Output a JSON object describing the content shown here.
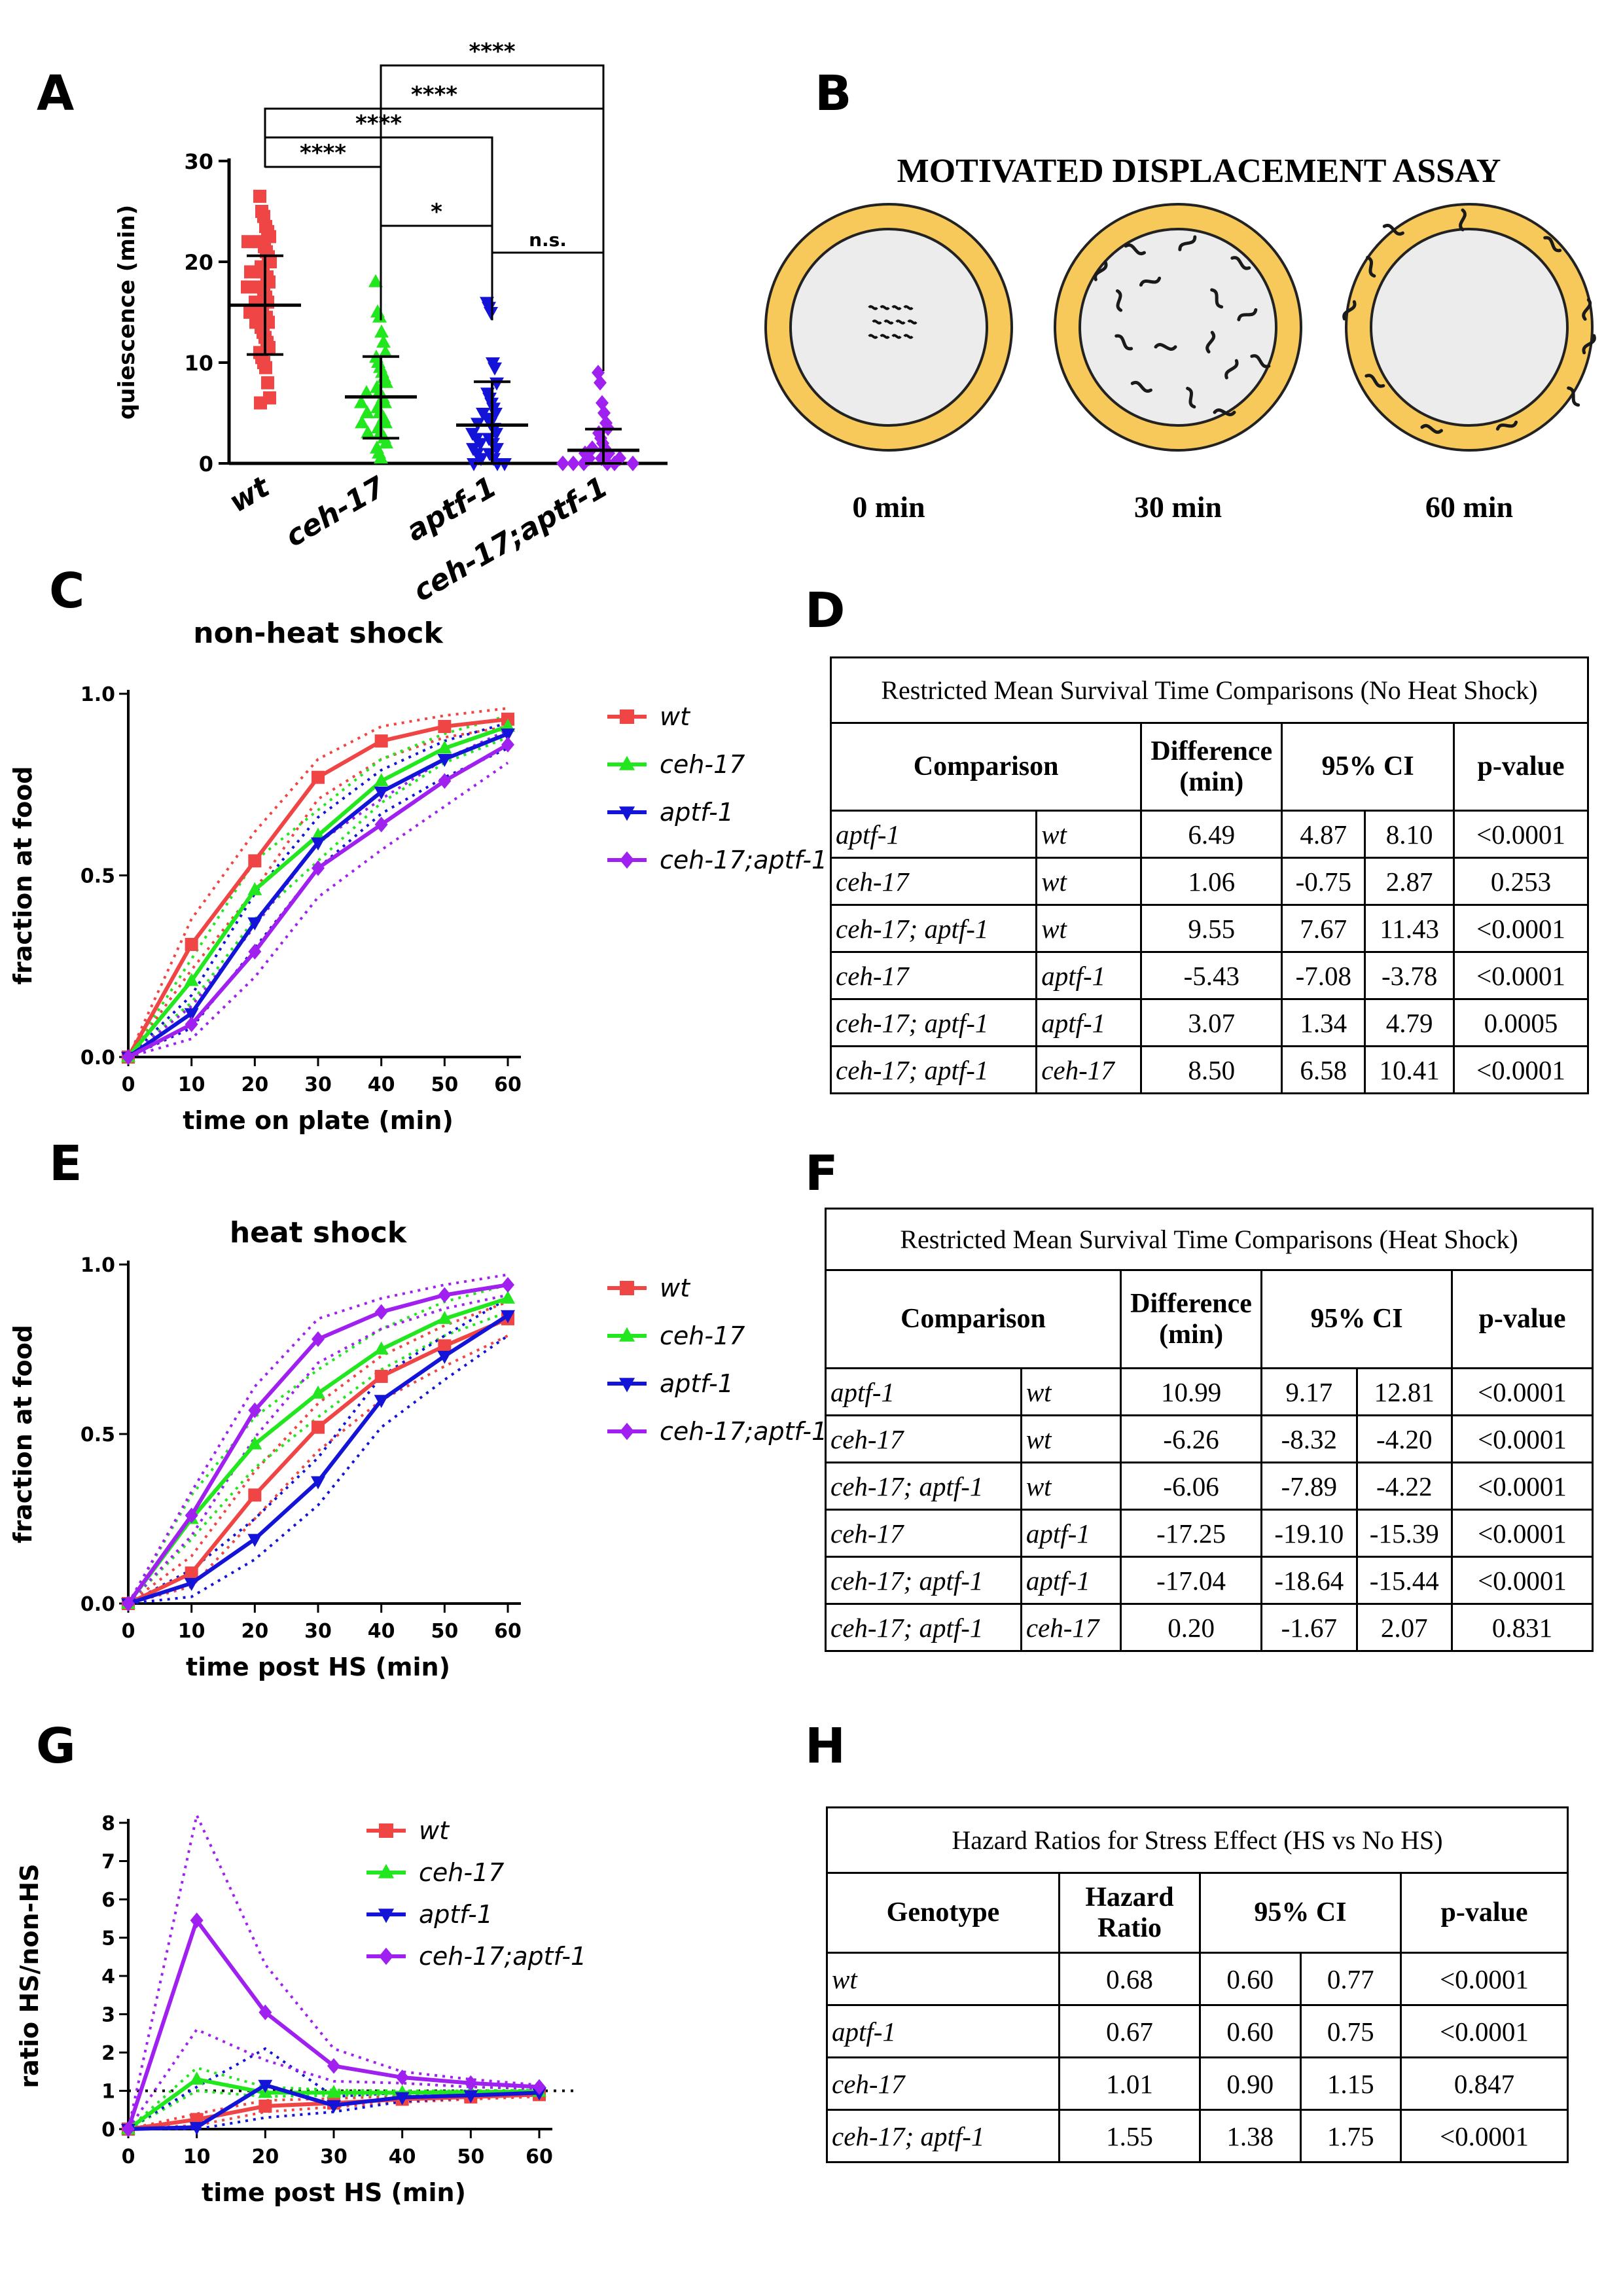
{
  "panels": {
    "A": "A",
    "B": "B",
    "C": "C",
    "D": "D",
    "E": "E",
    "F": "F",
    "G": "G",
    "H": "H"
  },
  "assay": {
    "title": "MOTIVATED DISPLACEMENT ASSAY",
    "labels": [
      "0 min",
      "30 min",
      "60 min"
    ]
  },
  "colors": {
    "wt": "#f04545",
    "ceh17": "#22e61e",
    "aptf1": "#1414d8",
    "double": "#a020f0",
    "plate": "#f7c85a",
    "agar": "#ececec"
  },
  "chart_data": [
    {
      "id": "A",
      "type": "scatter",
      "ylabel": "quiescence (min)",
      "ylim": [
        0,
        30
      ],
      "yticks": [
        0,
        10,
        20,
        30
      ],
      "categories": [
        "wt",
        "ceh-17",
        "aptf-1",
        "ceh-17;aptf-1"
      ],
      "series": [
        {
          "name": "wt",
          "mean": 15.7,
          "sd_low": 10.8,
          "sd_high": 20.6,
          "values": [
            26.5,
            25,
            24.5,
            23.5,
            23,
            22.5,
            22,
            22,
            21.5,
            21,
            20.5,
            20,
            19.5,
            19,
            19,
            18.5,
            18,
            17.5,
            17.5,
            17,
            16.5,
            16,
            16,
            15.5,
            15,
            15,
            14.5,
            14,
            14,
            13.5,
            13,
            12.5,
            12,
            11.5,
            11,
            10.5,
            10,
            9.5,
            8,
            6.5,
            6
          ]
        },
        {
          "name": "ceh-17",
          "mean": 6.6,
          "sd_low": 2.5,
          "sd_high": 10.6,
          "values": [
            18,
            15,
            14.5,
            13,
            12,
            11,
            10.5,
            10,
            9.5,
            9,
            8.5,
            8,
            7.5,
            7,
            7,
            6.5,
            6,
            6,
            5.5,
            5,
            5,
            4.5,
            4,
            4,
            3.5,
            3,
            3,
            2.5,
            2,
            1.5,
            1,
            0.5
          ]
        },
        {
          "name": "aptf-1",
          "mean": 3.8,
          "sd_low": 0,
          "sd_high": 8.1,
          "values": [
            16,
            15.5,
            15,
            10,
            9.5,
            8,
            7,
            6.5,
            6,
            5.5,
            5,
            5,
            4.5,
            4,
            4,
            3.5,
            3,
            3,
            2.5,
            2.5,
            2,
            2,
            1.5,
            1.5,
            1,
            1,
            0.5,
            0.5,
            0,
            0,
            0
          ]
        },
        {
          "name": "ceh-17;aptf-1",
          "mean": 1.3,
          "sd_low": 0,
          "sd_high": 3.4,
          "values": [
            9,
            8,
            6,
            5,
            4,
            3.5,
            3,
            2.5,
            2,
            1.5,
            1.5,
            1,
            1,
            0.5,
            0.5,
            0.5,
            0,
            0,
            0,
            0,
            0,
            0
          ]
        }
      ],
      "significance": [
        {
          "from": "wt",
          "to": "ceh-17",
          "label": "****"
        },
        {
          "from": "ceh-17",
          "to": "aptf-1",
          "label": "*"
        },
        {
          "from": "aptf-1",
          "to": "ceh-17;aptf-1",
          "label": "n.s."
        },
        {
          "from": "wt",
          "to": "aptf-1",
          "label": "****"
        },
        {
          "from": "wt",
          "to": "ceh-17;aptf-1",
          "label": "****"
        },
        {
          "from": "ceh-17",
          "to": "ceh-17;aptf-1",
          "label": "****"
        }
      ]
    },
    {
      "id": "C",
      "type": "line",
      "title": "non-heat shock",
      "xlabel": "time on plate (min)",
      "ylabel": "fraction at food",
      "x": [
        0,
        10,
        20,
        30,
        40,
        50,
        60
      ],
      "ylim": [
        0,
        1
      ],
      "yticks": [
        0.0,
        0.5,
        1.0
      ],
      "series": [
        {
          "name": "wt",
          "values": [
            0,
            0.31,
            0.54,
            0.77,
            0.87,
            0.91,
            0.93
          ],
          "lo": [
            0,
            0.24,
            0.46,
            0.71,
            0.82,
            0.88,
            0.91
          ],
          "hi": [
            0,
            0.38,
            0.62,
            0.82,
            0.91,
            0.94,
            0.96
          ]
        },
        {
          "name": "ceh-17",
          "values": [
            0,
            0.21,
            0.46,
            0.61,
            0.76,
            0.85,
            0.91
          ],
          "lo": [
            0,
            0.15,
            0.38,
            0.54,
            0.7,
            0.81,
            0.88
          ],
          "hi": [
            0,
            0.27,
            0.54,
            0.68,
            0.82,
            0.89,
            0.94
          ]
        },
        {
          "name": "aptf-1",
          "values": [
            0,
            0.12,
            0.37,
            0.59,
            0.73,
            0.82,
            0.89
          ],
          "lo": [
            0,
            0.08,
            0.3,
            0.52,
            0.67,
            0.77,
            0.85
          ],
          "hi": [
            0,
            0.17,
            0.45,
            0.66,
            0.79,
            0.87,
            0.92
          ]
        },
        {
          "name": "ceh-17;aptf-1",
          "values": [
            0,
            0.09,
            0.29,
            0.52,
            0.64,
            0.76,
            0.86
          ],
          "lo": [
            0,
            0.05,
            0.22,
            0.44,
            0.57,
            0.69,
            0.81
          ],
          "hi": [
            0,
            0.14,
            0.36,
            0.59,
            0.71,
            0.82,
            0.9
          ]
        }
      ]
    },
    {
      "id": "E",
      "type": "line",
      "title": "heat shock",
      "xlabel": "time post HS  (min)",
      "ylabel": "fraction at food",
      "x": [
        0,
        10,
        20,
        30,
        40,
        50,
        60
      ],
      "ylim": [
        0,
        1
      ],
      "yticks": [
        0.0,
        0.5,
        1.0
      ],
      "series": [
        {
          "name": "wt",
          "values": [
            0,
            0.09,
            0.32,
            0.52,
            0.67,
            0.76,
            0.84
          ],
          "lo": [
            0,
            0.05,
            0.25,
            0.45,
            0.6,
            0.7,
            0.79
          ],
          "hi": [
            0,
            0.14,
            0.39,
            0.59,
            0.73,
            0.82,
            0.89
          ]
        },
        {
          "name": "ceh-17",
          "values": [
            0,
            0.25,
            0.47,
            0.62,
            0.75,
            0.84,
            0.9
          ],
          "lo": [
            0,
            0.19,
            0.4,
            0.55,
            0.69,
            0.79,
            0.86
          ],
          "hi": [
            0,
            0.32,
            0.55,
            0.69,
            0.81,
            0.89,
            0.94
          ]
        },
        {
          "name": "aptf-1",
          "values": [
            0,
            0.06,
            0.19,
            0.36,
            0.6,
            0.73,
            0.85
          ],
          "lo": [
            0,
            0.02,
            0.13,
            0.29,
            0.52,
            0.66,
            0.79
          ],
          "hi": [
            0,
            0.1,
            0.25,
            0.43,
            0.67,
            0.79,
            0.9
          ]
        },
        {
          "name": "ceh-17;aptf-1",
          "values": [
            0,
            0.26,
            0.57,
            0.78,
            0.86,
            0.91,
            0.94
          ],
          "lo": [
            0,
            0.2,
            0.49,
            0.71,
            0.81,
            0.87,
            0.91
          ],
          "hi": [
            0,
            0.33,
            0.64,
            0.84,
            0.9,
            0.94,
            0.97
          ]
        }
      ]
    },
    {
      "id": "G",
      "type": "line",
      "xlabel": "time post HS (min)",
      "ylabel": "ratio HS/non-HS",
      "x": [
        0,
        10,
        20,
        30,
        40,
        50,
        60
      ],
      "ylim": [
        0,
        8
      ],
      "yticks": [
        0,
        1,
        2,
        3,
        4,
        5,
        6,
        7,
        8
      ],
      "reference_line": 1,
      "series": [
        {
          "name": "wt",
          "values": [
            0,
            0.25,
            0.6,
            0.68,
            0.78,
            0.84,
            0.9
          ],
          "lo": [
            0,
            0.1,
            0.45,
            0.58,
            0.7,
            0.78,
            0.85
          ],
          "hi": [
            0,
            0.4,
            0.75,
            0.8,
            0.86,
            0.9,
            0.95
          ]
        },
        {
          "name": "ceh-17",
          "values": [
            0,
            1.3,
            0.95,
            0.95,
            0.95,
            0.97,
            0.98
          ],
          "lo": [
            0,
            1.0,
            0.85,
            0.88,
            0.9,
            0.93,
            0.95
          ],
          "hi": [
            0,
            1.6,
            1.1,
            1.02,
            1.0,
            1.0,
            1.02
          ]
        },
        {
          "name": "aptf-1",
          "values": [
            0,
            0.05,
            1.15,
            0.62,
            0.83,
            0.88,
            0.95
          ],
          "lo": [
            0,
            0.0,
            0.3,
            0.45,
            0.72,
            0.82,
            0.9
          ],
          "hi": [
            0,
            1.1,
            2.1,
            0.85,
            0.95,
            0.95,
            1.0
          ]
        },
        {
          "name": "ceh-17;aptf-1",
          "values": [
            0,
            5.45,
            3.05,
            1.65,
            1.35,
            1.2,
            1.1
          ],
          "lo": [
            0,
            2.6,
            1.8,
            1.25,
            1.2,
            1.1,
            1.05
          ],
          "hi": [
            0,
            8.2,
            4.3,
            2.1,
            1.5,
            1.3,
            1.15
          ]
        }
      ]
    },
    {
      "id": "D",
      "type": "table",
      "title": "Restricted Mean Survival Time Comparisons (No Heat Shock)",
      "headers": [
        "Comparison",
        "Difference\n(min)",
        "95% CI",
        "p-value"
      ],
      "rows": [
        [
          "aptf-1",
          "wt",
          "6.49",
          "4.87",
          "8.10",
          "<0.0001"
        ],
        [
          "ceh-17",
          "wt",
          "1.06",
          "-0.75",
          "2.87",
          "0.253"
        ],
        [
          "ceh-17; aptf-1",
          "wt",
          "9.55",
          "7.67",
          "11.43",
          "<0.0001"
        ],
        [
          "ceh-17",
          "aptf-1",
          "-5.43",
          "-7.08",
          "-3.78",
          "<0.0001"
        ],
        [
          "ceh-17; aptf-1",
          "aptf-1",
          "3.07",
          "1.34",
          "4.79",
          "0.0005"
        ],
        [
          "ceh-17; aptf-1",
          "ceh-17",
          "8.50",
          "6.58",
          "10.41",
          "<0.0001"
        ]
      ]
    },
    {
      "id": "F",
      "type": "table",
      "title": "Restricted Mean Survival Time Comparisons (Heat Shock)",
      "headers": [
        "Comparison",
        "Difference\n(min)",
        "95% CI",
        "p-value"
      ],
      "rows": [
        [
          "aptf-1",
          "wt",
          "10.99",
          "9.17",
          "12.81",
          "<0.0001"
        ],
        [
          "ceh-17",
          "wt",
          "-6.26",
          "-8.32",
          "-4.20",
          "<0.0001"
        ],
        [
          "ceh-17; aptf-1",
          "wt",
          "-6.06",
          "-7.89",
          "-4.22",
          "<0.0001"
        ],
        [
          "ceh-17",
          "aptf-1",
          "-17.25",
          "-19.10",
          "-15.39",
          "<0.0001"
        ],
        [
          "ceh-17; aptf-1",
          "aptf-1",
          "-17.04",
          "-18.64",
          "-15.44",
          "<0.0001"
        ],
        [
          "ceh-17; aptf-1",
          "ceh-17",
          "0.20",
          "-1.67",
          "2.07",
          "0.831"
        ]
      ]
    },
    {
      "id": "H",
      "type": "table",
      "title": "Hazard Ratios for Stress Effect (HS vs No HS)",
      "headers": [
        "Genotype",
        "Hazard\nRatio",
        "95% CI",
        "p-value"
      ],
      "rows": [
        [
          "wt",
          "0.68",
          "0.60",
          "0.77",
          "<0.0001"
        ],
        [
          "aptf-1",
          "0.67",
          "0.60",
          "0.75",
          "<0.0001"
        ],
        [
          "ceh-17",
          "1.01",
          "0.90",
          "1.15",
          "0.847"
        ],
        [
          "ceh-17; aptf-1",
          "1.55",
          "1.38",
          "1.75",
          "<0.0001"
        ]
      ]
    }
  ]
}
